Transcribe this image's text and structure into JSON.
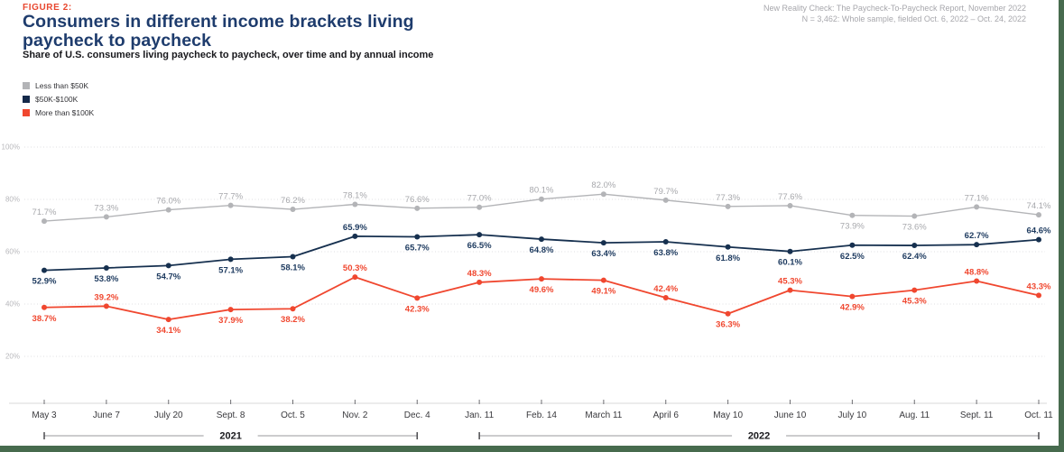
{
  "figure_label": "FIGURE 2:",
  "title_lines": [
    "Consumers in different income brackets living",
    "paycheck to paycheck"
  ],
  "subtitle": "Share of U.S. consumers living paycheck to paycheck, over time and by annual income",
  "source": {
    "line1": "New Reality Check: The Paycheck-To-Paycheck Report, November 2022",
    "line2": "N = 3,462: Whole sample, fielded Oct. 6, 2022 – Oct. 24, 2022"
  },
  "legend": {
    "items": [
      {
        "label": "Less than $50K",
        "color": "#b3b4b7"
      },
      {
        "label": "$50K-$100K",
        "color": "#14294a"
      },
      {
        "label": "More than $100K",
        "color": "#f0472f"
      }
    ]
  },
  "accent_colors": {
    "figure_label_red": "#e8472f",
    "title_navy": "#1e3c6d",
    "frame_green": "#476b4e"
  },
  "chart_data": {
    "type": "line",
    "title": "Share of U.S. consumers living paycheck to paycheck, over time and by annual income",
    "categories": [
      "May 3",
      "June 7",
      "July 20",
      "Sept. 8",
      "Oct. 5",
      "Nov. 2",
      "Dec. 4",
      "Jan. 11",
      "Feb. 14",
      "March 11",
      "April 6",
      "May 10",
      "June 10",
      "July 10",
      "Aug. 11",
      "Sept. 11",
      "Oct. 11"
    ],
    "year_groups": [
      {
        "label": "2021",
        "from": 0,
        "to": 6
      },
      {
        "label": "2022",
        "from": 7,
        "to": 16
      }
    ],
    "y_axis": {
      "tick_values": [
        100,
        80,
        60,
        40,
        20
      ],
      "tick_labels": [
        "100%",
        "80%",
        "60%",
        "40%",
        "20%"
      ],
      "unit": "%"
    },
    "ylim": [
      0,
      100
    ],
    "grid": true,
    "legend_position": "top-left",
    "series": [
      {
        "name": "Less than $50K",
        "color": "#b3b4b7",
        "label_color": "#a7a8ac",
        "bold_labels": false,
        "values": [
          71.7,
          73.3,
          76.0,
          77.7,
          76.2,
          78.1,
          76.6,
          77.0,
          80.1,
          82.0,
          79.7,
          77.3,
          77.6,
          73.9,
          73.6,
          77.1,
          74.1
        ],
        "label_side": [
          "above",
          "above",
          "above",
          "above",
          "above",
          "above",
          "above",
          "above",
          "above",
          "above",
          "above",
          "above",
          "above",
          "below",
          "below",
          "above",
          "above"
        ]
      },
      {
        "name": "$50K-$100K",
        "color": "#16304f",
        "label_color": "#1d3a5f",
        "bold_labels": true,
        "values": [
          52.9,
          53.8,
          54.7,
          57.1,
          58.1,
          65.9,
          65.7,
          66.5,
          64.8,
          63.4,
          63.8,
          61.8,
          60.1,
          62.5,
          62.4,
          62.7,
          64.6
        ],
        "label_side": [
          "below",
          "below",
          "below",
          "below",
          "below",
          "above",
          "below",
          "below",
          "below",
          "below",
          "below",
          "below",
          "below",
          "below",
          "below",
          "above",
          "above"
        ]
      },
      {
        "name": "More than $100K",
        "color": "#f0472f",
        "label_color": "#f0472f",
        "bold_labels": true,
        "values": [
          38.7,
          39.2,
          34.1,
          37.9,
          38.2,
          50.3,
          42.3,
          48.3,
          49.6,
          49.1,
          42.4,
          36.3,
          45.3,
          42.9,
          45.3,
          48.8,
          43.3
        ],
        "label_side": [
          "below",
          "above",
          "below",
          "below",
          "below",
          "above",
          "below",
          "above",
          "below",
          "below",
          "above",
          "below",
          "above",
          "below",
          "below",
          "above",
          "above"
        ]
      }
    ]
  }
}
